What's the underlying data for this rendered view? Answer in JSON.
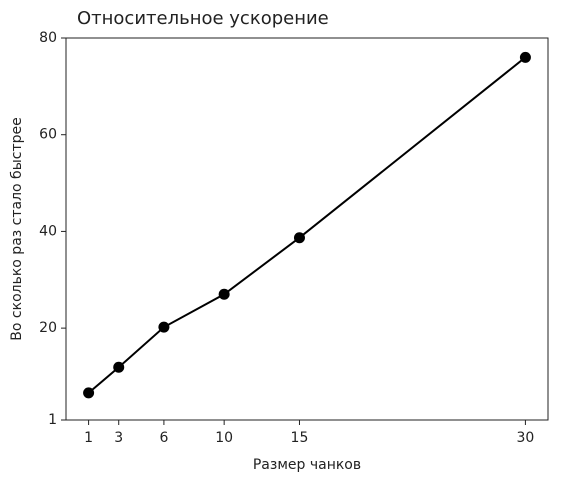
{
  "chart_data": {
    "type": "line",
    "title": "Относительное ускорение",
    "x_label": "Размер чанков",
    "y_label": "Во сколько раз стало быстрее",
    "x": [
      1,
      3,
      6,
      10,
      15,
      30
    ],
    "series": [
      {
        "name": null,
        "color": "#000000",
        "values": [
          6.6,
          11.9,
          20.2,
          27.0,
          38.7,
          76.0
        ]
      }
    ],
    "xlim": [
      -0.5,
      31.5
    ],
    "ylim": [
      1,
      80
    ],
    "xticks": [
      1,
      3,
      6,
      10,
      15,
      30
    ],
    "yticks": [
      1,
      20,
      40,
      60,
      80
    ],
    "grid": false
  }
}
